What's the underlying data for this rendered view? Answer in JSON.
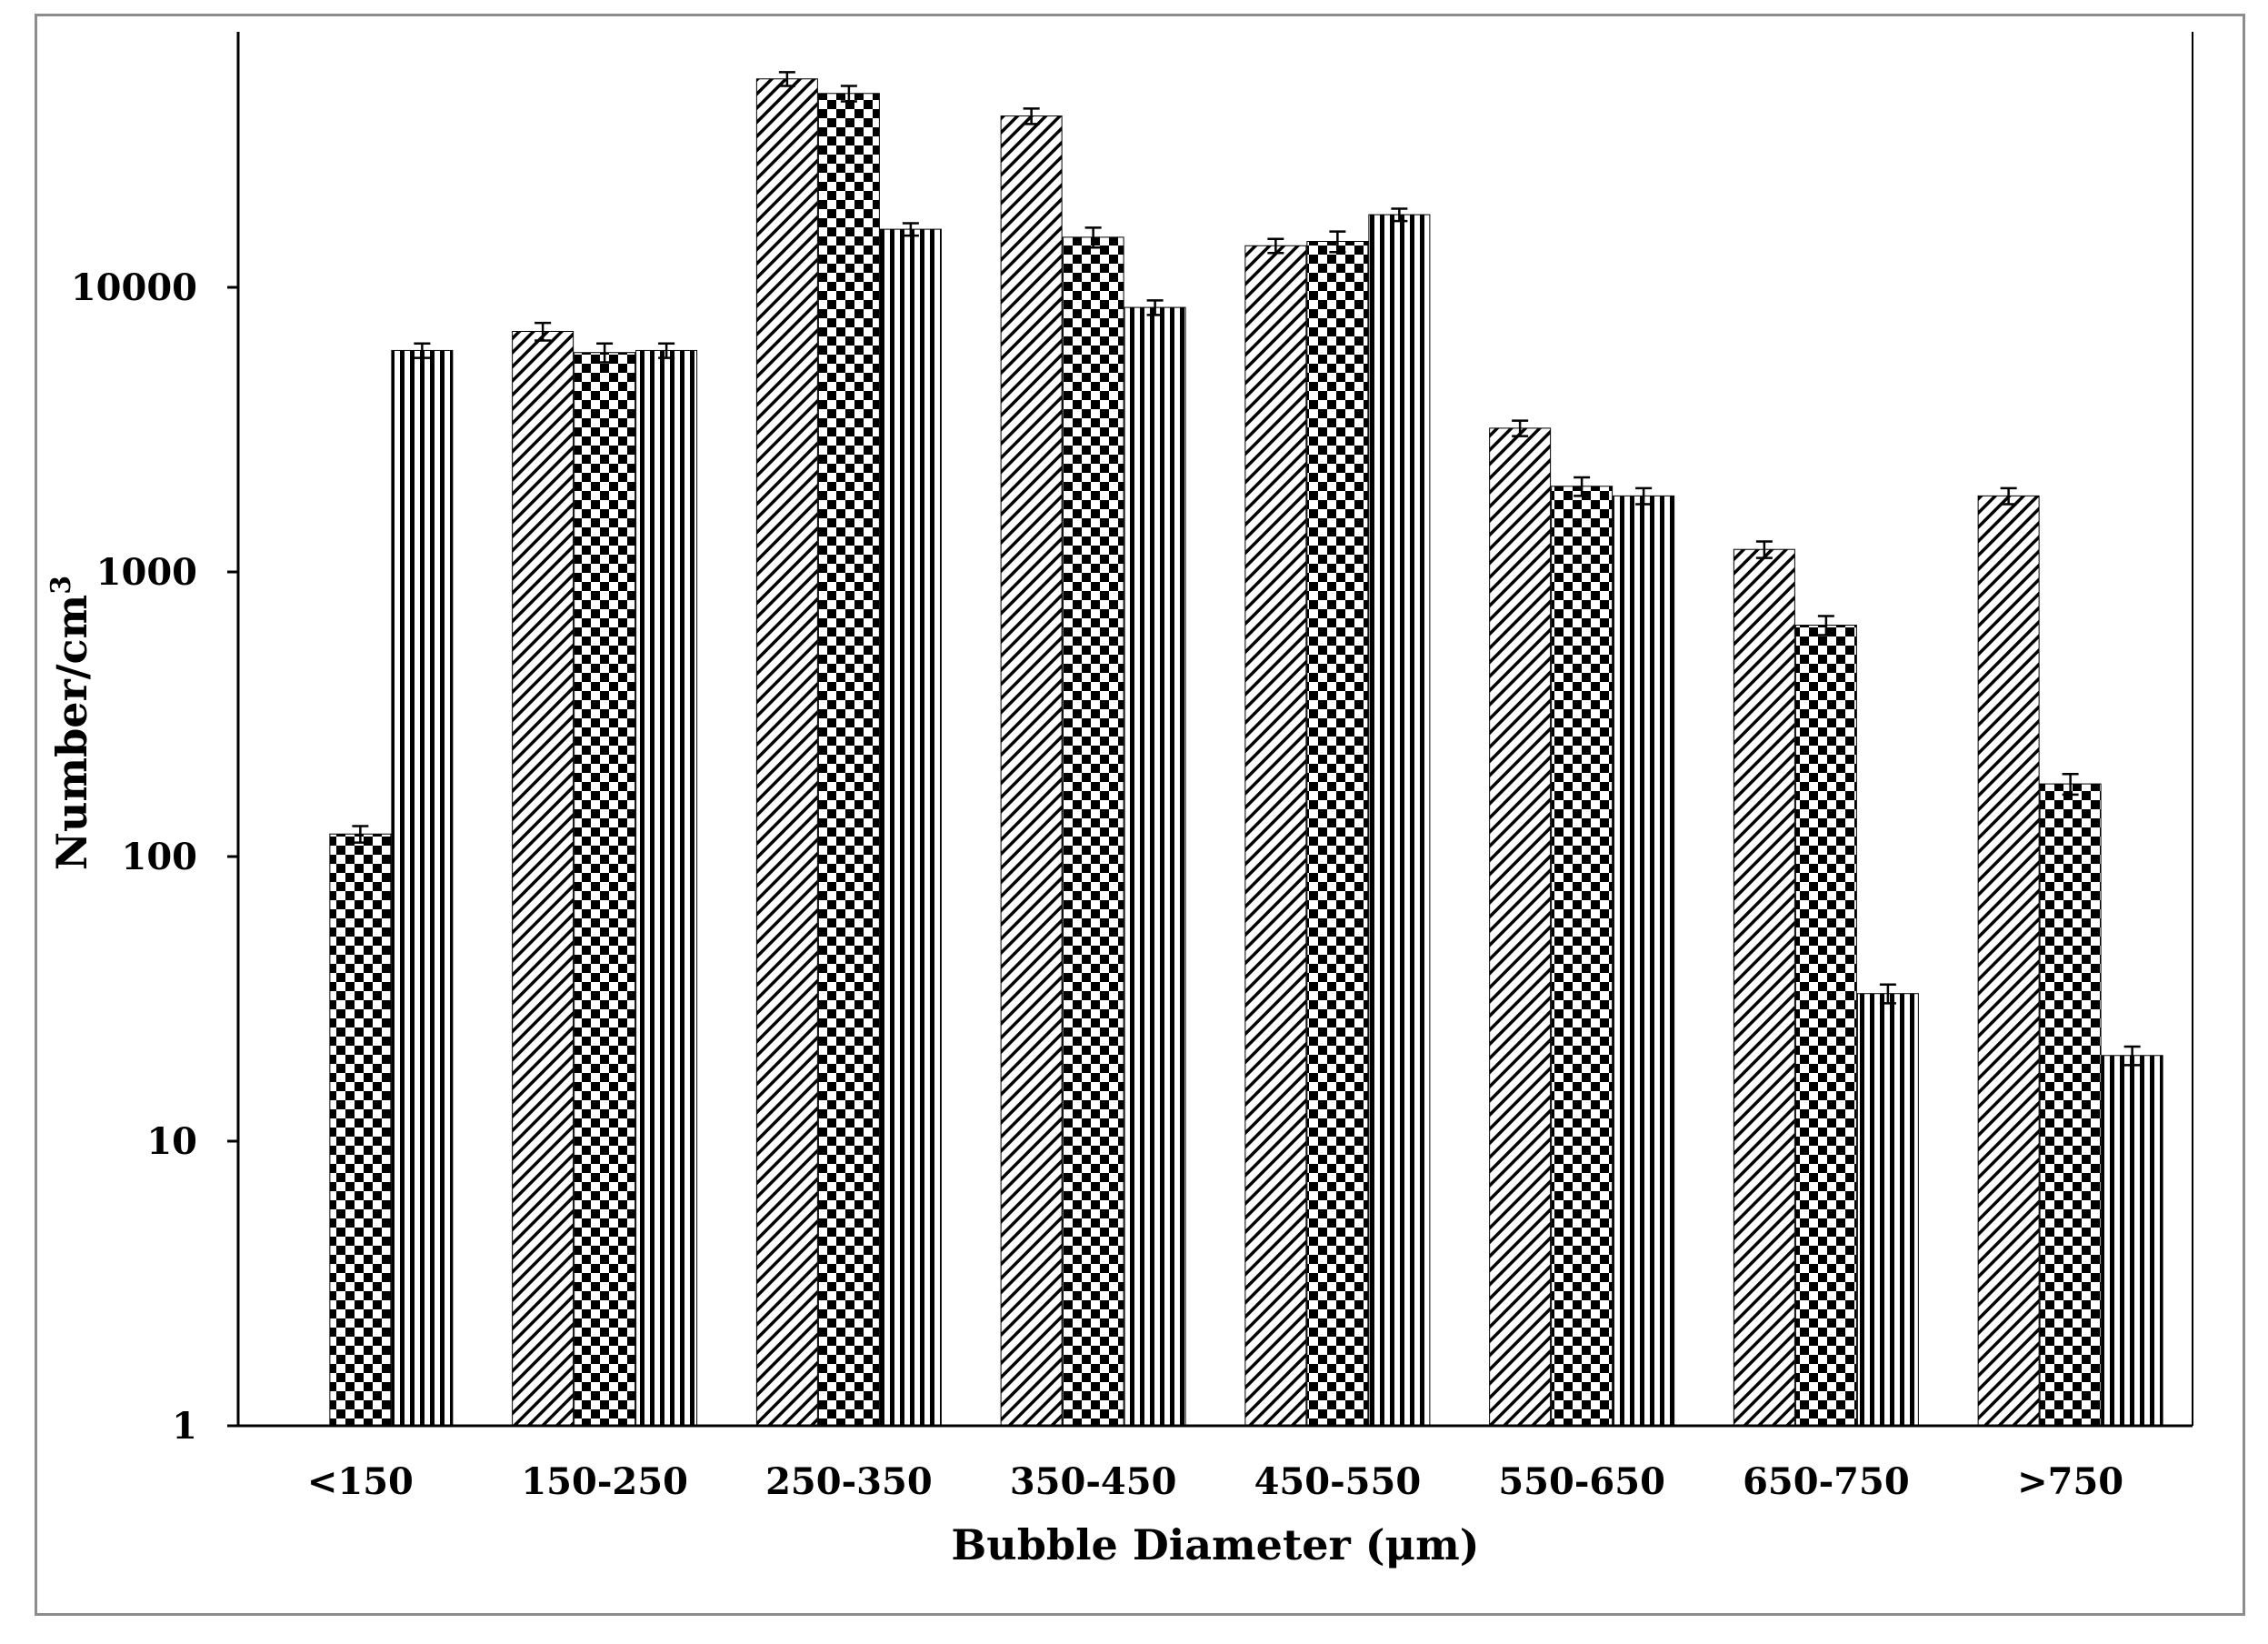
{
  "chart_data": {
    "type": "bar",
    "title": "",
    "xlabel": "Bubble Diameter  (μm)",
    "ylabel_main": "Number/cm",
    "ylabel_sup": "3",
    "y_scale": "log",
    "ylim": [
      1,
      80000
    ],
    "y_ticks": [
      "1",
      "10",
      "100",
      "1000",
      "10000"
    ],
    "grid": false,
    "legend": "none",
    "categories": [
      "<150",
      "150-250",
      "250-350",
      "350-450",
      "450-550",
      "550-650",
      "650-750",
      ">750"
    ],
    "series": [
      {
        "pattern": "diagonal-hatch",
        "values": [
          null,
          7000,
          54000,
          40000,
          14000,
          3200,
          1200,
          1850
        ],
        "errors": [
          null,
          500,
          3000,
          2500,
          800,
          200,
          80,
          120
        ]
      },
      {
        "pattern": "checker",
        "values": [
          120,
          5900,
          48000,
          15000,
          14500,
          2000,
          650,
          180
        ],
        "errors": [
          8,
          450,
          3000,
          1200,
          1200,
          150,
          50,
          15
        ]
      },
      {
        "pattern": "vertical-stripes",
        "values": [
          6000,
          6000,
          16000,
          8500,
          18000,
          1850,
          33,
          20
        ],
        "errors": [
          350,
          350,
          800,
          500,
          900,
          120,
          2.5,
          1.5
        ]
      }
    ]
  }
}
